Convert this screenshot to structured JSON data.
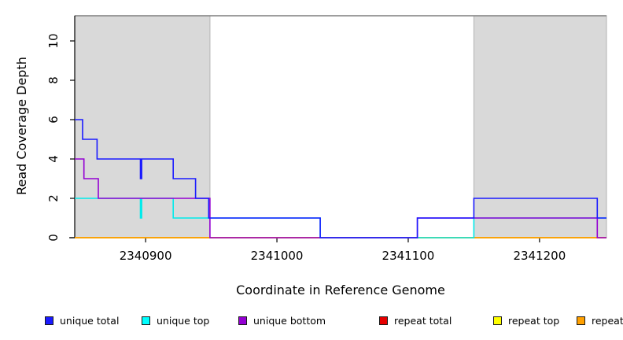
{
  "chart_data": {
    "type": "line",
    "title": "",
    "xlabel": "Coordinate in Reference Genome",
    "ylabel": "Read Coverage Depth",
    "xlim": [
      2340846,
      2341251
    ],
    "ylim": [
      0,
      11.28
    ],
    "x_ticks": [
      2340900,
      2341000,
      2341100,
      2341200
    ],
    "y_ticks": [
      0,
      2,
      4,
      6,
      8,
      10
    ],
    "grid": false,
    "legend_position": "bottom",
    "frame": {
      "shade_fill": "#D9D9D9",
      "shade_border": "#B4B4B4",
      "top_border_color": "#7F7F7F",
      "axis_color": "#000000"
    },
    "shaded_regions": [
      {
        "x0": 2340846,
        "x1": 2340949
      },
      {
        "x0": 2341150,
        "x1": 2341251
      }
    ],
    "series": [
      {
        "name": "repeat total",
        "color": "#E60000",
        "points": [
          [
            2340846,
            0
          ],
          [
            2341251,
            0
          ]
        ]
      },
      {
        "name": "repeat top",
        "color": "#FFFF00",
        "points": [
          [
            2340846,
            0
          ],
          [
            2341251,
            0
          ]
        ]
      },
      {
        "name": "repeat bottom",
        "color": "#FFA000",
        "points": [
          [
            2340846,
            0
          ],
          [
            2341251,
            0
          ]
        ]
      },
      {
        "name": "unique top",
        "color": "#00EBEB",
        "points": [
          [
            2340846,
            2
          ],
          [
            2340896,
            2
          ],
          [
            2340896,
            1
          ],
          [
            2340897,
            1
          ],
          [
            2340897,
            2
          ],
          [
            2340921,
            2
          ],
          [
            2340921,
            1
          ],
          [
            2341033,
            1
          ],
          [
            2341033,
            0
          ],
          [
            2341150,
            0
          ],
          [
            2341150,
            1
          ],
          [
            2341251,
            1
          ]
        ]
      },
      {
        "name": "unique bottom",
        "color": "#9400D3",
        "points": [
          [
            2340846,
            4
          ],
          [
            2340853,
            4
          ],
          [
            2340853,
            3
          ],
          [
            2340864,
            3
          ],
          [
            2340864,
            2
          ],
          [
            2340949,
            2
          ],
          [
            2340949,
            0
          ],
          [
            2341107,
            0
          ],
          [
            2341107,
            1
          ],
          [
            2341244,
            1
          ],
          [
            2341244,
            0
          ],
          [
            2341251,
            0
          ]
        ]
      },
      {
        "name": "unique total",
        "color": "#1A1AFF",
        "points": [
          [
            2340846,
            6
          ],
          [
            2340852,
            6
          ],
          [
            2340852,
            5
          ],
          [
            2340863,
            5
          ],
          [
            2340863,
            4
          ],
          [
            2340896,
            4
          ],
          [
            2340896,
            3
          ],
          [
            2340897,
            3
          ],
          [
            2340897,
            4
          ],
          [
            2340921,
            4
          ],
          [
            2340921,
            3
          ],
          [
            2340938,
            3
          ],
          [
            2340938,
            2
          ],
          [
            2340948,
            2
          ],
          [
            2340948,
            1
          ],
          [
            2341033,
            1
          ],
          [
            2341033,
            0
          ],
          [
            2341107,
            0
          ],
          [
            2341107,
            1
          ],
          [
            2341150,
            1
          ],
          [
            2341150,
            2
          ],
          [
            2341244,
            2
          ],
          [
            2341244,
            1
          ],
          [
            2341251,
            1
          ]
        ]
      }
    ]
  },
  "legend": {
    "items": [
      {
        "label": "unique total",
        "color": "#1A1AFF"
      },
      {
        "label": "unique top",
        "color": "#00FFFF"
      },
      {
        "label": "unique bottom",
        "color": "#9400D3"
      },
      {
        "label": "repeat total",
        "color": "#E60000"
      },
      {
        "label": "repeat top",
        "color": "#FFFF00"
      },
      {
        "label": "repeat bottom",
        "color": "#FFA000"
      }
    ]
  }
}
